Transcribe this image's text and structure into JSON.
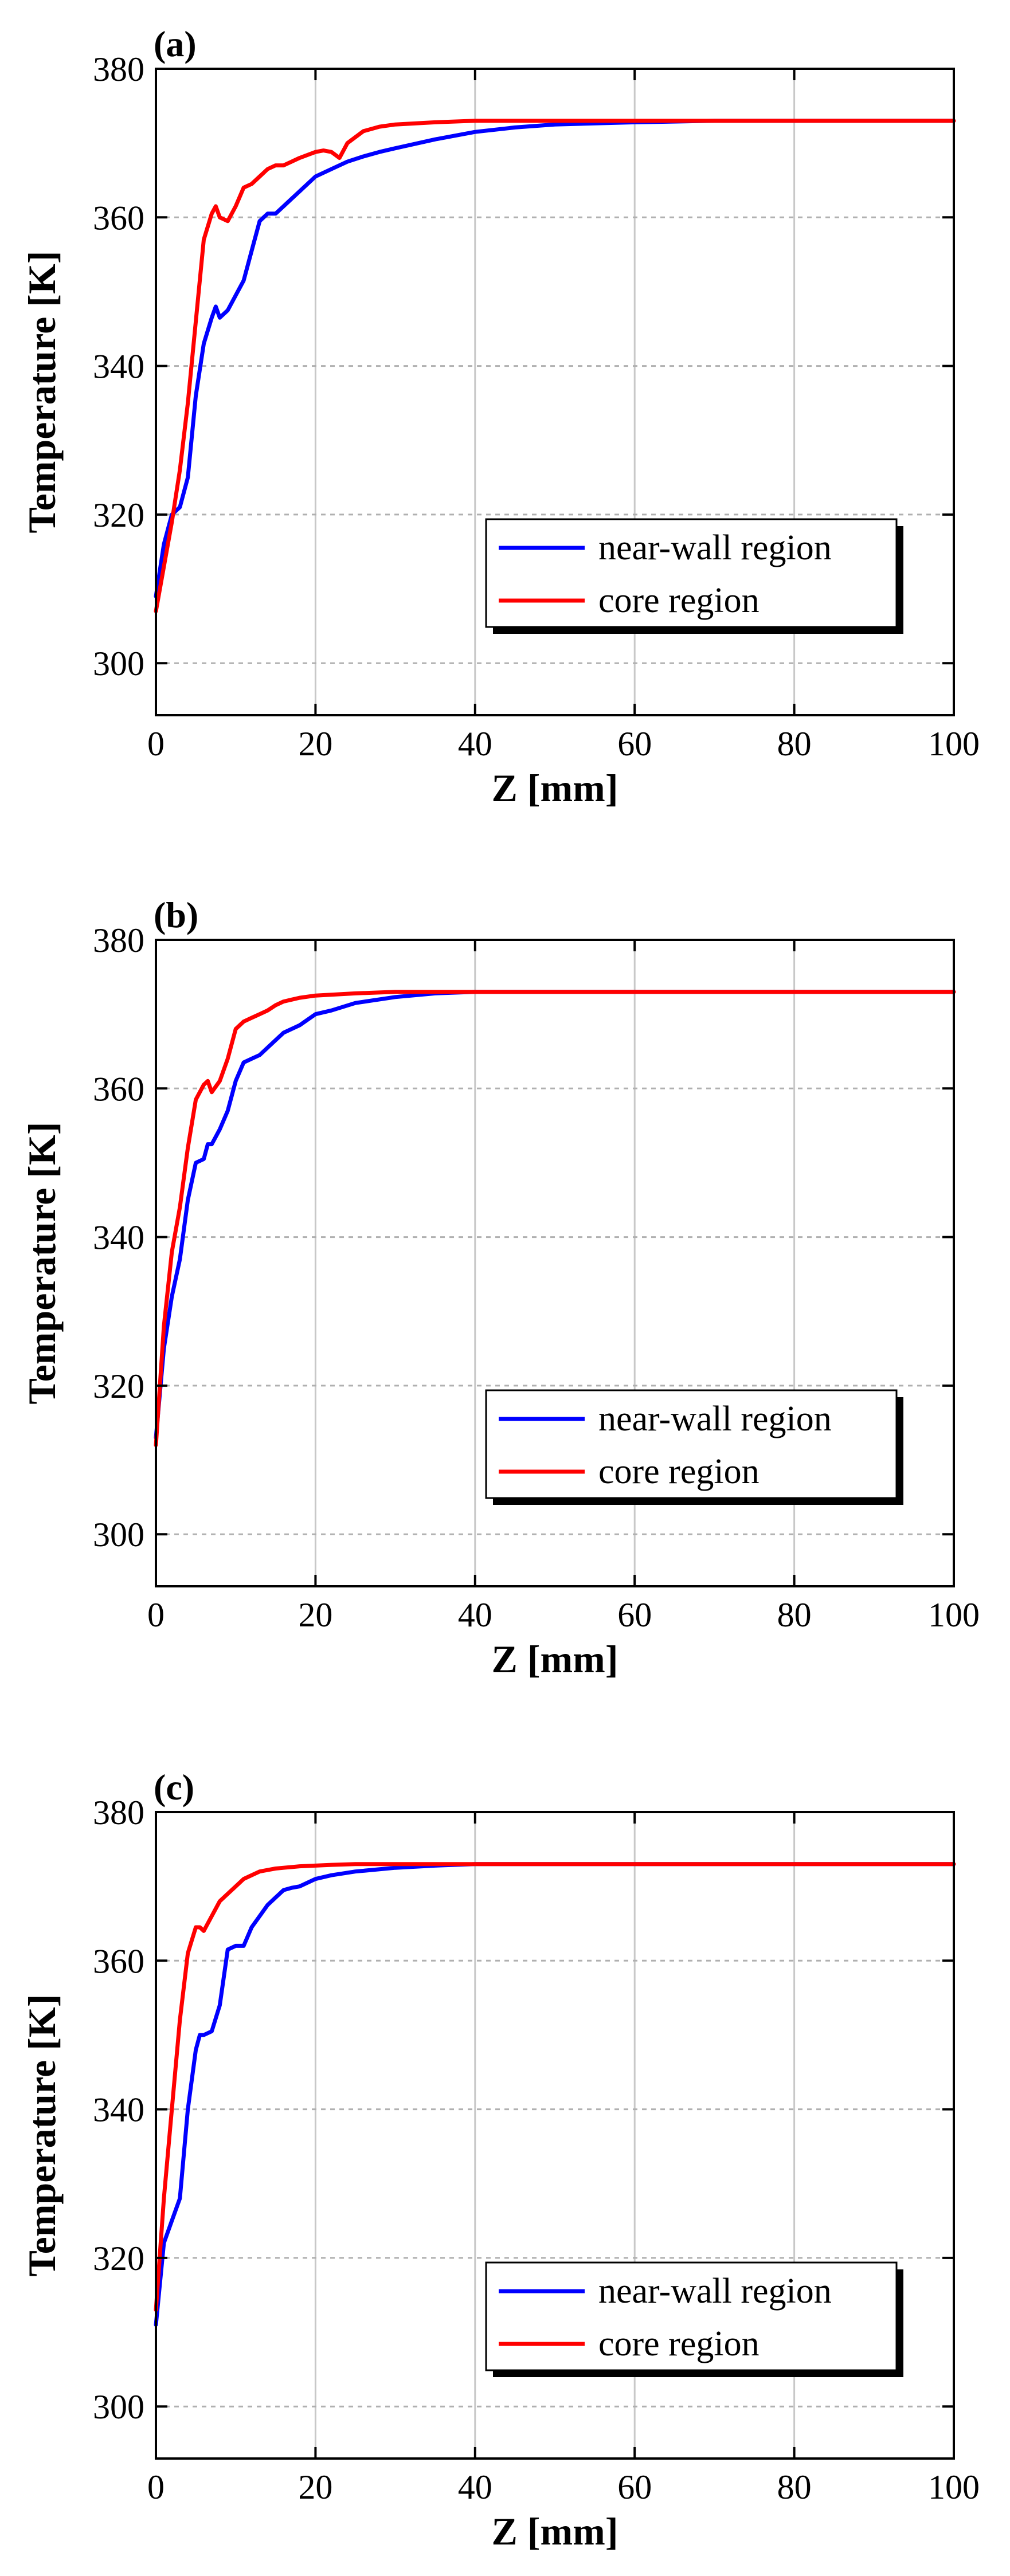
{
  "chart_data": [
    {
      "type": "line",
      "panel_label": "(a)",
      "xlabel": "Z [mm]",
      "ylabel": "Temperature [K]",
      "xlim": [
        0,
        100
      ],
      "ylim": [
        293,
        380
      ],
      "xticks": [
        "0",
        "20",
        "40",
        "60",
        "80",
        "100"
      ],
      "yticks": [
        "300",
        "320",
        "340",
        "360",
        "380"
      ],
      "grid": true,
      "legend": "center-right",
      "series": [
        {
          "name": "near-wall region",
          "color": "#0000ff",
          "x": [
            0,
            1,
            2,
            3,
            4,
            5,
            6,
            7,
            7.5,
            8,
            9,
            10,
            11,
            12,
            13,
            14,
            15,
            16,
            18,
            20,
            22,
            24,
            26,
            28,
            30,
            35,
            40,
            45,
            50,
            60,
            70,
            80,
            90,
            100
          ],
          "y": [
            309,
            316,
            320,
            321,
            325,
            336,
            343,
            346.5,
            348,
            346.5,
            347.5,
            349.5,
            351.5,
            355.5,
            359.5,
            360.5,
            360.5,
            361.5,
            363.5,
            365.5,
            366.5,
            367.5,
            368.2,
            368.8,
            369.3,
            370.5,
            371.5,
            372.1,
            372.5,
            372.8,
            373,
            373,
            373,
            373
          ]
        },
        {
          "name": "core region",
          "color": "#ff0000",
          "x": [
            0,
            1,
            2,
            3,
            4,
            5,
            6,
            7,
            7.5,
            8,
            9,
            10,
            11,
            12,
            13,
            14,
            15,
            16,
            18,
            20,
            21,
            22,
            23,
            24,
            26,
            28,
            30,
            35,
            40,
            45,
            50,
            60,
            70,
            80,
            90,
            100
          ],
          "y": [
            307,
            313,
            319,
            326,
            335,
            346,
            357,
            360.5,
            361.5,
            360,
            359.5,
            361.5,
            364,
            364.5,
            365.5,
            366.5,
            367,
            367,
            368,
            368.8,
            369,
            368.8,
            368,
            370,
            371.6,
            372.2,
            372.5,
            372.8,
            373,
            373,
            373,
            373,
            373,
            373,
            373,
            373
          ]
        }
      ]
    },
    {
      "type": "line",
      "panel_label": "(b)",
      "xlabel": "Z [mm]",
      "ylabel": "Temperature [K]",
      "xlim": [
        0,
        100
      ],
      "ylim": [
        293,
        380
      ],
      "xticks": [
        "0",
        "20",
        "40",
        "60",
        "80",
        "100"
      ],
      "yticks": [
        "300",
        "320",
        "340",
        "360",
        "380"
      ],
      "grid": true,
      "legend": "center-right",
      "series": [
        {
          "name": "near-wall region",
          "color": "#0000ff",
          "x": [
            0,
            1,
            2,
            3,
            4,
            5,
            6,
            6.5,
            7,
            8,
            9,
            10,
            11,
            12,
            13,
            14,
            15,
            16,
            17,
            18,
            20,
            22,
            25,
            30,
            35,
            40,
            45,
            50,
            60,
            70,
            80,
            90,
            100
          ],
          "y": [
            313,
            325,
            332,
            337,
            345,
            350,
            350.5,
            352.5,
            352.5,
            354.5,
            357,
            361,
            363.5,
            364,
            364.5,
            365.5,
            366.5,
            367.5,
            368,
            368.5,
            370,
            370.5,
            371.5,
            372.3,
            372.8,
            373,
            373,
            373,
            373,
            373,
            373,
            373,
            373
          ]
        },
        {
          "name": "core region",
          "color": "#ff0000",
          "x": [
            0,
            1,
            2,
            3,
            4,
            5,
            6,
            6.5,
            7,
            8,
            9,
            10,
            11,
            12,
            13,
            14,
            15,
            16,
            18,
            20,
            25,
            30,
            35,
            40,
            45,
            50,
            60,
            70,
            80,
            90,
            100
          ],
          "y": [
            312,
            328,
            338,
            344,
            352,
            358.5,
            360.5,
            361,
            359.5,
            361,
            364,
            368,
            369,
            369.5,
            370,
            370.5,
            371.2,
            371.7,
            372.2,
            372.5,
            372.8,
            373,
            373,
            373,
            373,
            373,
            373,
            373,
            373,
            373,
            373
          ]
        }
      ]
    },
    {
      "type": "line",
      "panel_label": "(c)",
      "xlabel": "Z [mm]",
      "ylabel": "Temperature [K]",
      "xlim": [
        0,
        100
      ],
      "ylim": [
        293,
        380
      ],
      "xticks": [
        "0",
        "20",
        "40",
        "60",
        "80",
        "100"
      ],
      "yticks": [
        "300",
        "320",
        "340",
        "360",
        "380"
      ],
      "grid": true,
      "legend": "center-right",
      "series": [
        {
          "name": "near-wall region",
          "color": "#0000ff",
          "x": [
            0,
            1,
            2,
            3,
            4,
            5,
            5.5,
            6,
            7,
            8,
            9,
            10,
            11,
            12,
            13,
            14,
            15,
            16,
            17,
            18,
            20,
            22,
            25,
            30,
            35,
            40,
            50,
            60,
            70,
            80,
            90,
            100
          ],
          "y": [
            311,
            322,
            325,
            328,
            340,
            348,
            350,
            350,
            350.5,
            354,
            361.5,
            362,
            362,
            364.5,
            366,
            367.5,
            368.5,
            369.5,
            369.8,
            370,
            371,
            371.5,
            372,
            372.5,
            372.8,
            373,
            373,
            373,
            373,
            373,
            373,
            373
          ]
        },
        {
          "name": "core region",
          "color": "#ff0000",
          "x": [
            0,
            1,
            2,
            3,
            4,
            5,
            5.5,
            6,
            7,
            8,
            9,
            10,
            11,
            12,
            13,
            14,
            15,
            16,
            18,
            20,
            22,
            25,
            30,
            35,
            40,
            50,
            60,
            70,
            80,
            90,
            100
          ],
          "y": [
            313,
            328,
            340,
            352,
            361,
            364.5,
            364.5,
            364,
            366,
            368,
            369,
            370,
            371,
            371.5,
            372,
            372.2,
            372.4,
            372.5,
            372.7,
            372.8,
            372.9,
            373,
            373,
            373,
            373,
            373,
            373,
            373,
            373,
            373,
            373
          ]
        }
      ]
    }
  ]
}
